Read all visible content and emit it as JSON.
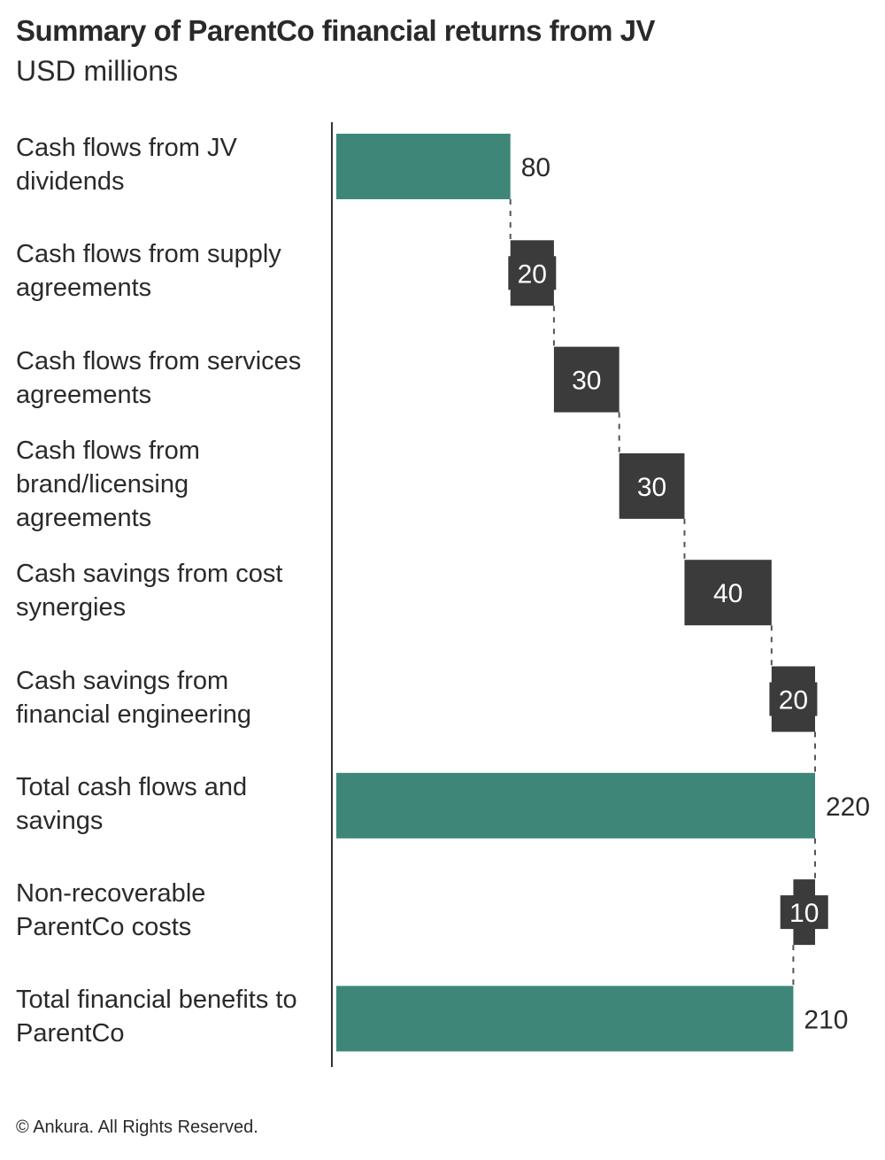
{
  "chart_data": {
    "type": "bar",
    "orientation": "horizontal",
    "style": "waterfall",
    "title": "Summary of ParentCo financial returns from JV",
    "subtitle": "USD millions",
    "categories": [
      "Cash flows from JV dividends",
      "Cash flows from supply agreements",
      "Cash flows from services agreements",
      "Cash flows from brand/licensing agreements",
      "Cash savings from cost synergies",
      "Cash savings from financial engineering",
      "Total cash flows and savings",
      "Non-recoverable ParentCo costs",
      "Total financial  benefits to ParentCo"
    ],
    "values": [
      80,
      20,
      30,
      30,
      40,
      20,
      220,
      -10,
      210
    ],
    "value_labels": [
      "80",
      "20",
      "30",
      "30",
      "40",
      "20",
      "220",
      "10",
      "210"
    ],
    "bar_kind": [
      "total",
      "delta",
      "delta",
      "delta",
      "delta",
      "delta",
      "total",
      "delta",
      "total"
    ],
    "xlim": [
      0,
      220
    ],
    "grid": false,
    "colors": {
      "total": "#3e8778",
      "delta": "#3b3b3b",
      "connector": "#555555",
      "axis": "#333333"
    }
  },
  "footer": "© Ankura. All Rights Reserved."
}
